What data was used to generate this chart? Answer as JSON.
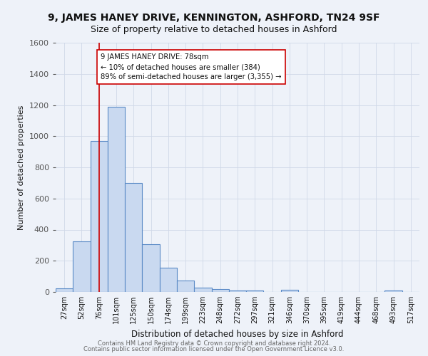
{
  "title": "9, JAMES HANEY DRIVE, KENNINGTON, ASHFORD, TN24 9SF",
  "subtitle": "Size of property relative to detached houses in Ashford",
  "xlabel": "Distribution of detached houses by size in Ashford",
  "ylabel": "Number of detached properties",
  "footer_line1": "Contains HM Land Registry data © Crown copyright and database right 2024.",
  "footer_line2": "Contains public sector information licensed under the Open Government Licence v3.0.",
  "bar_labels": [
    "27sqm",
    "52sqm",
    "76sqm",
    "101sqm",
    "125sqm",
    "150sqm",
    "174sqm",
    "199sqm",
    "223sqm",
    "248sqm",
    "272sqm",
    "297sqm",
    "321sqm",
    "346sqm",
    "370sqm",
    "395sqm",
    "419sqm",
    "444sqm",
    "468sqm",
    "493sqm",
    "517sqm"
  ],
  "bar_values": [
    25,
    325,
    970,
    1190,
    700,
    305,
    155,
    75,
    28,
    18,
    10,
    10,
    0,
    15,
    0,
    0,
    0,
    0,
    0,
    10,
    0
  ],
  "bar_color": "#c9d9f0",
  "bar_edge_color": "#5a8ac6",
  "bar_width": 1.0,
  "red_line_x": 2,
  "red_line_color": "#cc0000",
  "annotation_text": "9 JAMES HANEY DRIVE: 78sqm\n← 10% of detached houses are smaller (384)\n89% of semi-detached houses are larger (3,355) →",
  "ylim": [
    0,
    1600
  ],
  "yticks": [
    0,
    200,
    400,
    600,
    800,
    1000,
    1200,
    1400,
    1600
  ],
  "grid_color": "#d0d8e8",
  "background_color": "#eef2f9",
  "title_fontsize": 10,
  "subtitle_fontsize": 9
}
